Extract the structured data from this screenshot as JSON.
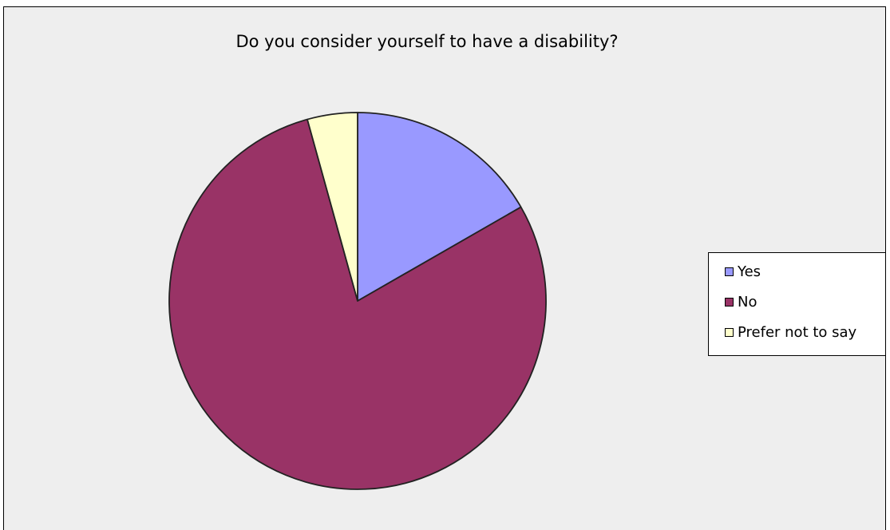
{
  "chart_data": {
    "type": "pie",
    "title": "Do you consider yourself to have a disability?",
    "categories": [
      "Yes",
      "No",
      "Prefer not to say"
    ],
    "values": [
      16.7,
      79.0,
      4.3
    ],
    "colors": [
      "#9999ff",
      "#993366",
      "#ffffcc"
    ],
    "legend_position": "right",
    "background": "#eeeeee"
  }
}
